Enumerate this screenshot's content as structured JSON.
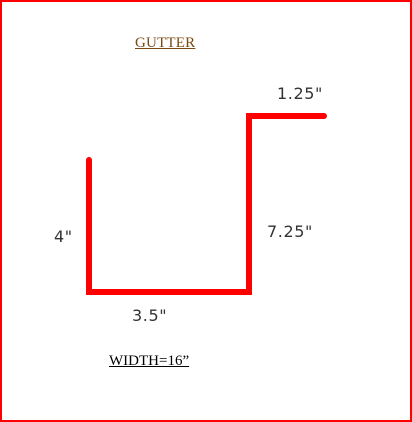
{
  "title": "GUTTER",
  "width_label": "WIDTH=16”",
  "dimensions": {
    "top_flange": "1.25\"",
    "left_side": "4\"",
    "right_side": "7.25\"",
    "bottom": "3.5\""
  },
  "colors": {
    "frame_border": "#ff0000",
    "profile_line": "#ff0000",
    "title_text": "#7a4a12",
    "dimension_text": "#333333"
  }
}
